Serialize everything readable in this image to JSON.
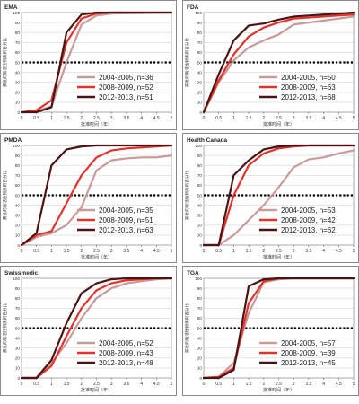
{
  "colors": {
    "s2004": "#c99a9a",
    "s2008": "#e0342a",
    "s2012": "#4b1414",
    "frame": "#8b8b8b",
    "panelBg": "#ffffff",
    "grid": "#d6d6d6",
    "refline": "#000000"
  },
  "axis": {
    "xticks": [
      "0",
      "0.5",
      "1",
      "1.5",
      "2",
      "2.5",
      "3",
      "3.5",
      "4",
      "4.5",
      "5"
    ],
    "xlabel": "批准时间（年）",
    "yticks": [
      "0",
      "10",
      "20",
      "30",
      "40",
      "50",
      "60",
      "70",
      "80",
      "90",
      "100"
    ],
    "ylabel": "获批的新活性物质的百分比"
  },
  "chart_data": [
    {
      "type": "line",
      "title": "EMA",
      "xlim": [
        0,
        5
      ],
      "ylim": [
        0,
        100
      ],
      "reference_y": 50,
      "legend_position": "bottom-right",
      "series": [
        {
          "name": "2004-2005, n=36",
          "key": "s2004",
          "x": [
            0,
            0.5,
            1,
            1.5,
            2,
            2.5,
            3,
            5
          ],
          "y": [
            0,
            1,
            6,
            50,
            88,
            97,
            99,
            100
          ]
        },
        {
          "name": "2008-2009, n=52",
          "key": "s2008",
          "x": [
            0,
            0.5,
            1,
            1.5,
            2,
            2.5,
            3,
            5
          ],
          "y": [
            0,
            2,
            12,
            70,
            94,
            99,
            100,
            100
          ]
        },
        {
          "name": "2012-2013, n=51",
          "key": "s2012",
          "x": [
            0,
            0.5,
            1,
            1.5,
            2,
            2.5,
            3,
            5
          ],
          "y": [
            0,
            0,
            5,
            80,
            98,
            100,
            100,
            100
          ]
        }
      ]
    },
    {
      "type": "line",
      "title": "FDA",
      "xlim": [
        0,
        5
      ],
      "ylim": [
        0,
        100
      ],
      "reference_y": 50,
      "legend_position": "bottom-right",
      "series": [
        {
          "name": "2004-2005, n=50",
          "key": "s2004",
          "x": [
            0,
            0.5,
            1,
            1.5,
            2,
            2.5,
            3,
            3.5,
            4,
            4.5,
            5
          ],
          "y": [
            0,
            30,
            52,
            65,
            72,
            78,
            88,
            90,
            92,
            94,
            96
          ]
        },
        {
          "name": "2008-2009, n=63",
          "key": "s2008",
          "x": [
            0,
            0.5,
            1,
            1.5,
            2,
            2.5,
            3,
            3.5,
            4,
            4.5,
            5
          ],
          "y": [
            0,
            32,
            58,
            76,
            85,
            90,
            94,
            95,
            96,
            97,
            98
          ]
        },
        {
          "name": "2012-2013, n=68",
          "key": "s2012",
          "x": [
            0,
            0.5,
            1,
            1.5,
            2,
            2.5,
            3,
            3.5,
            4,
            4.5,
            5
          ],
          "y": [
            0,
            38,
            72,
            87,
            89,
            93,
            96,
            97,
            98,
            99,
            100
          ]
        }
      ]
    },
    {
      "type": "line",
      "title": "PMDA",
      "xlim": [
        0,
        5
      ],
      "ylim": [
        0,
        100
      ],
      "reference_y": 50,
      "legend_position": "bottom-right",
      "series": [
        {
          "name": "2004-2005, n=35",
          "key": "s2004",
          "x": [
            0,
            0.5,
            1,
            1.5,
            2,
            2.5,
            3,
            3.5,
            4,
            4.5,
            5
          ],
          "y": [
            0,
            8,
            12,
            20,
            38,
            75,
            85,
            87,
            88,
            88,
            90
          ]
        },
        {
          "name": "2008-2009, n=51",
          "key": "s2008",
          "x": [
            0,
            0.5,
            1,
            1.5,
            2,
            2.5,
            3,
            3.5,
            4,
            4.5,
            5
          ],
          "y": [
            0,
            10,
            14,
            42,
            70,
            88,
            95,
            97,
            98,
            99,
            100
          ]
        },
        {
          "name": "2012-2013, n=63",
          "key": "s2012",
          "x": [
            0,
            0.5,
            1,
            1.5,
            2,
            2.5,
            3,
            3.5,
            4,
            4.5,
            5
          ],
          "y": [
            0,
            12,
            80,
            96,
            99,
            100,
            100,
            100,
            100,
            100,
            100
          ]
        }
      ]
    },
    {
      "type": "line",
      "title": "Health Canada",
      "xlim": [
        0,
        5
      ],
      "ylim": [
        0,
        100
      ],
      "reference_y": 50,
      "legend_position": "bottom-right",
      "series": [
        {
          "name": "2004-2005, n=53",
          "key": "s2004",
          "x": [
            0,
            0.5,
            1,
            1.5,
            2,
            2.5,
            3,
            3.5,
            4,
            4.5,
            5
          ],
          "y": [
            0,
            0,
            10,
            25,
            40,
            58,
            78,
            86,
            88,
            92,
            95
          ]
        },
        {
          "name": "2008-2009, n=42",
          "key": "s2008",
          "x": [
            0,
            0.5,
            1,
            1.5,
            2,
            2.5,
            3,
            3.5,
            4,
            4.5,
            5
          ],
          "y": [
            0,
            0,
            50,
            80,
            92,
            97,
            99,
            100,
            100,
            100,
            100
          ]
        },
        {
          "name": "2012-2013, n=62",
          "key": "s2012",
          "x": [
            0,
            0.5,
            1,
            1.5,
            2,
            2.5,
            3,
            3.5,
            4,
            4.5,
            5
          ],
          "y": [
            0,
            0,
            70,
            85,
            96,
            99,
            100,
            100,
            100,
            100,
            100
          ]
        }
      ]
    },
    {
      "type": "line",
      "title": "Swissmedic",
      "xlim": [
        0,
        5
      ],
      "ylim": [
        0,
        100
      ],
      "reference_y": 50,
      "legend_position": "bottom-right",
      "series": [
        {
          "name": "2004-2005, n=52",
          "key": "s2004",
          "x": [
            0,
            0.5,
            1,
            1.5,
            2,
            2.5,
            3,
            3.5,
            4,
            4.5,
            5
          ],
          "y": [
            0,
            0,
            15,
            35,
            60,
            80,
            90,
            95,
            97,
            99,
            100
          ]
        },
        {
          "name": "2008-2009, n=43",
          "key": "s2008",
          "x": [
            0,
            0.5,
            1,
            1.5,
            2,
            2.5,
            3,
            3.5,
            4,
            4.5,
            5
          ],
          "y": [
            0,
            0,
            12,
            42,
            70,
            88,
            95,
            98,
            99,
            100,
            100
          ]
        },
        {
          "name": "2012-2013, n=48",
          "key": "s2012",
          "x": [
            0,
            0.5,
            1,
            1.5,
            2,
            2.5,
            3,
            3.5,
            4,
            4.5,
            5
          ],
          "y": [
            0,
            0,
            18,
            55,
            85,
            95,
            99,
            100,
            100,
            100,
            100
          ]
        }
      ]
    },
    {
      "type": "line",
      "title": "TGA",
      "xlim": [
        0,
        5
      ],
      "ylim": [
        0,
        100
      ],
      "reference_y": 50,
      "legend_position": "bottom-right",
      "series": [
        {
          "name": "2004-2005, n=57",
          "key": "s2004",
          "x": [
            0,
            0.5,
            1,
            1.5,
            2,
            2.5,
            3,
            5
          ],
          "y": [
            0,
            1,
            15,
            65,
            96,
            99,
            100,
            100
          ]
        },
        {
          "name": "2008-2009, n=39",
          "key": "s2008",
          "x": [
            0,
            0.5,
            1,
            1.5,
            2,
            2.5,
            3,
            5
          ],
          "y": [
            0,
            1,
            10,
            75,
            97,
            100,
            100,
            100
          ]
        },
        {
          "name": "2012-2013, n=45",
          "key": "s2012",
          "x": [
            0,
            0.5,
            1,
            1.5,
            2,
            2.5,
            3,
            5
          ],
          "y": [
            0,
            0,
            8,
            92,
            99,
            100,
            100,
            100
          ]
        }
      ]
    }
  ]
}
